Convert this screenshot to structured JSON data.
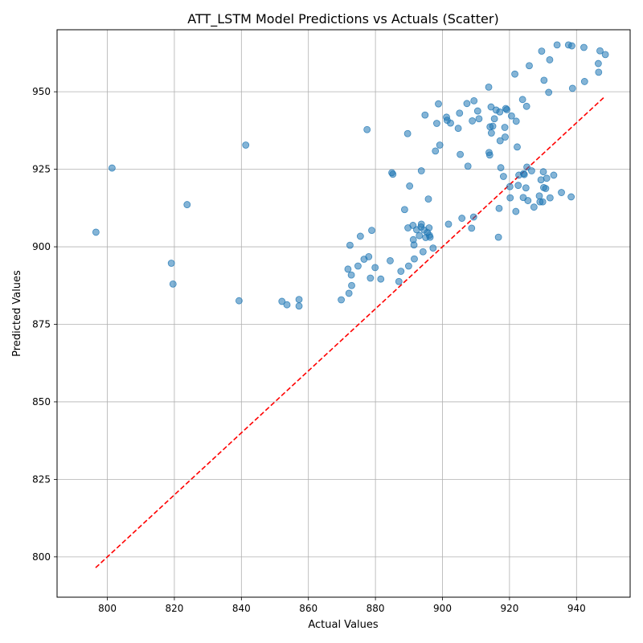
{
  "chart_data": {
    "type": "scatter",
    "title": "ATT_LSTM Model Predictions vs Actuals (Scatter)",
    "xlabel": "Actual Values",
    "ylabel": "Predicted Values",
    "xlim": [
      785,
      956
    ],
    "ylim": [
      787,
      970
    ],
    "xticks": [
      800,
      820,
      840,
      860,
      880,
      900,
      920,
      940
    ],
    "xtick_labels": [
      "800",
      "820",
      "840",
      "860",
      "880",
      "900",
      "920",
      "940"
    ],
    "yticks": [
      800,
      825,
      850,
      875,
      900,
      925,
      950
    ],
    "ytick_labels": [
      "800",
      "825",
      "850",
      "875",
      "900",
      "925",
      "950"
    ],
    "grid": true,
    "colors": {
      "points": "#1f77b4",
      "diagonal": "#ff0000",
      "grid": "#b0b0b0"
    },
    "diagonal": {
      "from": 796.5,
      "to": 948.6,
      "style": "dashed"
    },
    "series": [
      {
        "points": [
          [
            796.6,
            904.7
          ],
          [
            801.4,
            925.4
          ],
          [
            819.1,
            894.7
          ],
          [
            819.6,
            888.0
          ],
          [
            823.8,
            913.6
          ],
          [
            839.3,
            882.6
          ],
          [
            841.3,
            932.8
          ],
          [
            852.1,
            882.4
          ],
          [
            853.6,
            881.3
          ],
          [
            857.2,
            880.9
          ],
          [
            857.2,
            883.0
          ],
          [
            869.8,
            882.9
          ],
          [
            871.8,
            892.8
          ],
          [
            872.1,
            885.0
          ],
          [
            872.4,
            900.5
          ],
          [
            872.8,
            890.9
          ],
          [
            872.9,
            887.5
          ],
          [
            874.8,
            893.8
          ],
          [
            875.5,
            903.4
          ],
          [
            876.6,
            896.0
          ],
          [
            877.5,
            937.8
          ],
          [
            878.0,
            896.8
          ],
          [
            878.5,
            889.9
          ],
          [
            878.9,
            905.3
          ],
          [
            879.9,
            893.3
          ],
          [
            881.6,
            889.6
          ],
          [
            884.4,
            895.5
          ],
          [
            884.9,
            923.9
          ],
          [
            885.2,
            923.4
          ],
          [
            887.0,
            888.8
          ],
          [
            887.6,
            892.1
          ],
          [
            888.7,
            912.0
          ],
          [
            889.6,
            936.5
          ],
          [
            889.7,
            906.1
          ],
          [
            889.9,
            893.8
          ],
          [
            890.2,
            919.6
          ],
          [
            891.2,
            906.9
          ],
          [
            891.3,
            902.3
          ],
          [
            891.5,
            900.6
          ],
          [
            891.6,
            896.1
          ],
          [
            892.3,
            905.5
          ],
          [
            893.1,
            903.6
          ],
          [
            893.6,
            906.4
          ],
          [
            893.7,
            907.3
          ],
          [
            893.7,
            924.5
          ],
          [
            894.2,
            898.4
          ],
          [
            894.5,
            905.4
          ],
          [
            894.8,
            942.5
          ],
          [
            895.0,
            903.0
          ],
          [
            895.5,
            904.6
          ],
          [
            895.8,
            915.4
          ],
          [
            896.0,
            906.1
          ],
          [
            896.1,
            903.7
          ],
          [
            896.3,
            903.1
          ],
          [
            897.2,
            899.6
          ],
          [
            897.9,
            930.9
          ],
          [
            898.3,
            939.8
          ],
          [
            898.8,
            946.1
          ],
          [
            899.2,
            932.8
          ],
          [
            901.2,
            941.8
          ],
          [
            901.4,
            940.8
          ],
          [
            901.8,
            907.3
          ],
          [
            902.4,
            939.9
          ],
          [
            904.7,
            938.2
          ],
          [
            905.1,
            943.1
          ],
          [
            905.3,
            929.8
          ],
          [
            905.8,
            909.2
          ],
          [
            907.3,
            946.2
          ],
          [
            907.6,
            926.0
          ],
          [
            908.7,
            906.0
          ],
          [
            908.9,
            940.6
          ],
          [
            909.3,
            909.6
          ],
          [
            909.4,
            947.1
          ],
          [
            910.5,
            943.8
          ],
          [
            910.9,
            941.3
          ],
          [
            913.8,
            951.5
          ],
          [
            913.9,
            930.4
          ],
          [
            914.1,
            929.6
          ],
          [
            914.2,
            938.7
          ],
          [
            914.5,
            945.1
          ],
          [
            914.6,
            936.7
          ],
          [
            915.0,
            938.9
          ],
          [
            915.5,
            941.3
          ],
          [
            916.0,
            944.1
          ],
          [
            916.7,
            903.1
          ],
          [
            916.9,
            912.4
          ],
          [
            917.1,
            943.5
          ],
          [
            917.2,
            934.2
          ],
          [
            917.4,
            925.5
          ],
          [
            918.2,
            922.7
          ],
          [
            918.6,
            938.5
          ],
          [
            918.7,
            935.4
          ],
          [
            918.9,
            944.6
          ],
          [
            919.2,
            944.2
          ],
          [
            920.1,
            919.4
          ],
          [
            920.2,
            915.8
          ],
          [
            920.6,
            942.2
          ],
          [
            921.6,
            955.7
          ],
          [
            921.9,
            911.4
          ],
          [
            922.0,
            940.5
          ],
          [
            922.3,
            932.2
          ],
          [
            922.6,
            919.8
          ],
          [
            922.8,
            923.1
          ],
          [
            923.9,
            947.5
          ],
          [
            924.1,
            915.9
          ],
          [
            924.2,
            923.6
          ],
          [
            924.4,
            923.3
          ],
          [
            924.9,
            919.0
          ],
          [
            925.1,
            945.3
          ],
          [
            925.2,
            925.7
          ],
          [
            925.5,
            914.9
          ],
          [
            925.9,
            958.4
          ],
          [
            926.6,
            924.5
          ],
          [
            927.3,
            912.8
          ],
          [
            928.9,
            916.4
          ],
          [
            929.1,
            914.5
          ],
          [
            929.4,
            921.6
          ],
          [
            929.6,
            963.1
          ],
          [
            929.9,
            914.5
          ],
          [
            930.1,
            924.2
          ],
          [
            930.2,
            919.1
          ],
          [
            930.3,
            953.7
          ],
          [
            930.8,
            918.8
          ],
          [
            931.1,
            922.1
          ],
          [
            931.7,
            949.8
          ],
          [
            932.0,
            960.3
          ],
          [
            932.1,
            915.8
          ],
          [
            933.2,
            923.1
          ],
          [
            934.2,
            965.1
          ],
          [
            935.5,
            917.5
          ],
          [
            937.6,
            965.1
          ],
          [
            938.4,
            916.1
          ],
          [
            938.6,
            964.8
          ],
          [
            938.8,
            951.1
          ],
          [
            942.2,
            964.3
          ],
          [
            942.4,
            953.3
          ],
          [
            946.5,
            959.1
          ],
          [
            946.6,
            956.3
          ],
          [
            947.0,
            963.2
          ],
          [
            948.6,
            962.0
          ]
        ]
      }
    ]
  }
}
